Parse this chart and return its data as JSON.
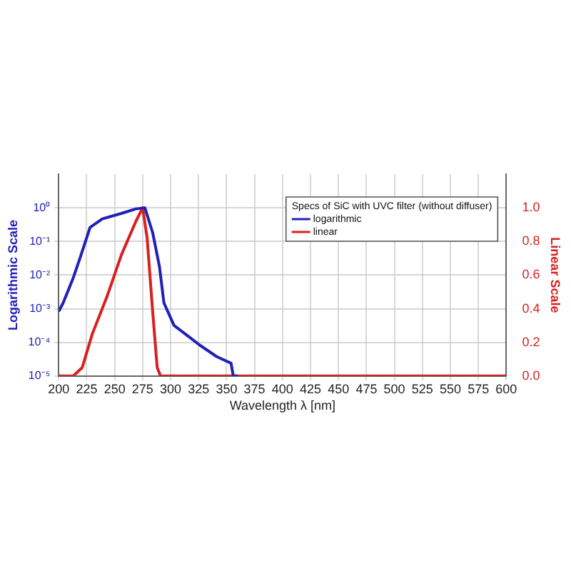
{
  "chart_data": {
    "type": "line",
    "legend_title": "Specs of SiC with UVC filter (without diffuser)",
    "xlabel": "Wavelength λ [nm]",
    "ylabel": "Logarithmic Scale",
    "y2label": "Linear Scale",
    "series": [
      {
        "name": "logarithmic",
        "color": "#2020b8",
        "x": [
          200,
          204,
          213,
          219,
          228,
          239,
          256,
          269,
          277,
          284,
          290,
          294,
          303,
          316,
          326,
          341,
          354,
          356,
          360
        ],
        "values": [
          0.00083,
          0.0015,
          0.0083,
          0.032,
          0.26,
          0.47,
          0.68,
          0.93,
          1,
          0.18,
          0.018,
          0.0015,
          0.00032,
          0.00015,
          8.3e-05,
          3.8e-05,
          2.4e-05,
          1e-05,
          1e-05
        ]
      },
      {
        "name": "linear",
        "color": "#d82020",
        "axis": "y2",
        "x": [
          200,
          213,
          221,
          230,
          243,
          256,
          269,
          275,
          279,
          284,
          288,
          291,
          600
        ],
        "values": [
          0,
          0,
          0.05,
          0.25,
          0.47,
          0.72,
          0.92,
          1.0,
          0.82,
          0.38,
          0.05,
          0,
          0
        ]
      }
    ],
    "xlim": [
      200,
      600
    ],
    "xticks": [
      200,
      225,
      250,
      275,
      300,
      325,
      350,
      375,
      400,
      425,
      450,
      475,
      500,
      525,
      550,
      575,
      600
    ],
    "log": "y",
    "ylim": [
      1e-05,
      10
    ],
    "yticks": [
      {
        "value": 1e-05,
        "label": "10⁻⁵"
      },
      {
        "value": 0.0001,
        "label": "10⁻⁴"
      },
      {
        "value": 0.001,
        "label": "10⁻³"
      },
      {
        "value": 0.01,
        "label": "10⁻²"
      },
      {
        "value": 0.1,
        "label": "10⁻¹"
      },
      {
        "value": 1,
        "label": "10⁰"
      }
    ],
    "y2lim": [
      0,
      1.2
    ],
    "y2ticks": [
      {
        "value": 0,
        "label": "0.0"
      },
      {
        "value": 0.2,
        "label": "0.2"
      },
      {
        "value": 0.4,
        "label": "0.4"
      },
      {
        "value": 0.6,
        "label": "0.6"
      },
      {
        "value": 0.8,
        "label": "0.8"
      },
      {
        "value": 1,
        "label": "1.0"
      }
    ],
    "grid": true,
    "legend": "top right",
    "marker": "none",
    "line_style": "solid"
  }
}
